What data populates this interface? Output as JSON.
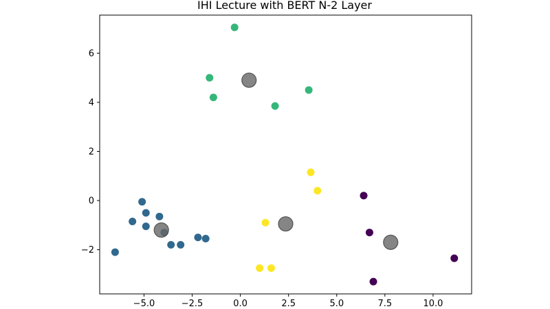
{
  "chart_data": {
    "type": "scatter",
    "title": "IHI Lecture with BERT N-2 Layer",
    "xlabel": "",
    "ylabel": "",
    "xlim": [
      -7.3,
      12.0
    ],
    "ylim": [
      -3.8,
      7.55
    ],
    "xticks": [
      -5.0,
      -2.5,
      0.0,
      2.5,
      5.0,
      7.5,
      10.0
    ],
    "xtick_labels": [
      "−5.0",
      "−2.5",
      "0.0",
      "2.5",
      "5.0",
      "7.5",
      "10.0"
    ],
    "yticks": [
      -2,
      0,
      2,
      4,
      6
    ],
    "ytick_labels": [
      "−2",
      "0",
      "2",
      "4",
      "6"
    ],
    "grid": false,
    "series": [
      {
        "color": "#440154",
        "points": [
          [
            6.4,
            0.2
          ],
          [
            6.7,
            -1.3
          ],
          [
            6.9,
            -3.3
          ],
          [
            11.1,
            -2.35
          ]
        ]
      },
      {
        "color": "#31688e",
        "points": [
          [
            -6.5,
            -2.1
          ],
          [
            -5.6,
            -0.85
          ],
          [
            -5.1,
            -0.05
          ],
          [
            -4.9,
            -0.5
          ],
          [
            -4.9,
            -1.05
          ],
          [
            -4.2,
            -0.65
          ],
          [
            -3.95,
            -1.3
          ],
          [
            -3.6,
            -1.8
          ],
          [
            -3.1,
            -1.8
          ],
          [
            -2.2,
            -1.5
          ],
          [
            -1.8,
            -1.55
          ]
        ]
      },
      {
        "color": "#35b779",
        "points": [
          [
            -0.3,
            7.05
          ],
          [
            -1.6,
            5.0
          ],
          [
            -1.4,
            4.2
          ],
          [
            1.8,
            3.85
          ],
          [
            3.55,
            4.5
          ]
        ]
      },
      {
        "color": "#fde725",
        "points": [
          [
            3.65,
            1.15
          ],
          [
            4.0,
            0.4
          ],
          [
            1.3,
            -0.9
          ],
          [
            1.0,
            -2.75
          ],
          [
            1.6,
            -2.75
          ]
        ]
      }
    ],
    "centroids": {
      "color": "#666666",
      "opacity": 0.8,
      "points": [
        [
          0.45,
          4.9
        ],
        [
          -4.1,
          -1.2
        ],
        [
          2.35,
          -0.95
        ],
        [
          7.8,
          -1.7
        ]
      ]
    }
  }
}
